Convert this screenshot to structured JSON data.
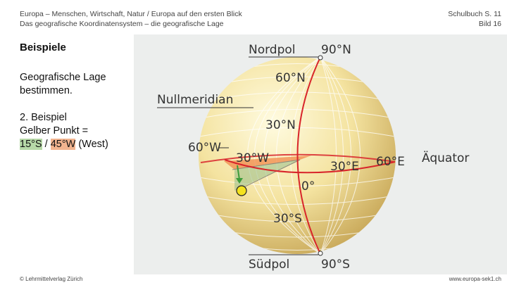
{
  "header": {
    "title_line1": "Europa – Menschen, Wirtschaft, Natur / Europa auf den ersten Blick",
    "title_line2": "Das geografische Koordinatensystem – die geografische Lage",
    "ref_line1": "Schulbuch S. 11",
    "ref_line2": "Bild 16"
  },
  "main": {
    "heading": "Beispiele",
    "task": "Geografische Lage bestimmen.",
    "example_title": "2. Beispiel",
    "example_line": "Gelber Punkt =",
    "coord_lat": "15°S",
    "coord_sep": " / ",
    "coord_lon": "45°W",
    "coord_suffix": " (West)"
  },
  "figure": {
    "label_nordpol": "Nordpol",
    "label_90n": "90°N",
    "label_60n": "60°N",
    "label_nullmeridian": "Nullmeridian",
    "label_30n": "30°N",
    "label_60w": "60°W",
    "label_30w": "30°W",
    "label_30e": "30°E",
    "label_60e": "60°E",
    "label_aequator": "Äquator",
    "label_0": "0°",
    "label_30s": "30°S",
    "label_suedpol": "Südpol",
    "label_90s": "90°S",
    "colors": {
      "globe": "#f2e08a",
      "meridian": "#d8252b",
      "point": "#f4e21e",
      "arrow": "#3d9c3a",
      "orange_angle": "#f08a4b"
    }
  },
  "footer": {
    "publisher": "© Lehrmittelverlag Zürich",
    "website": "www.europa-sek1.ch"
  }
}
